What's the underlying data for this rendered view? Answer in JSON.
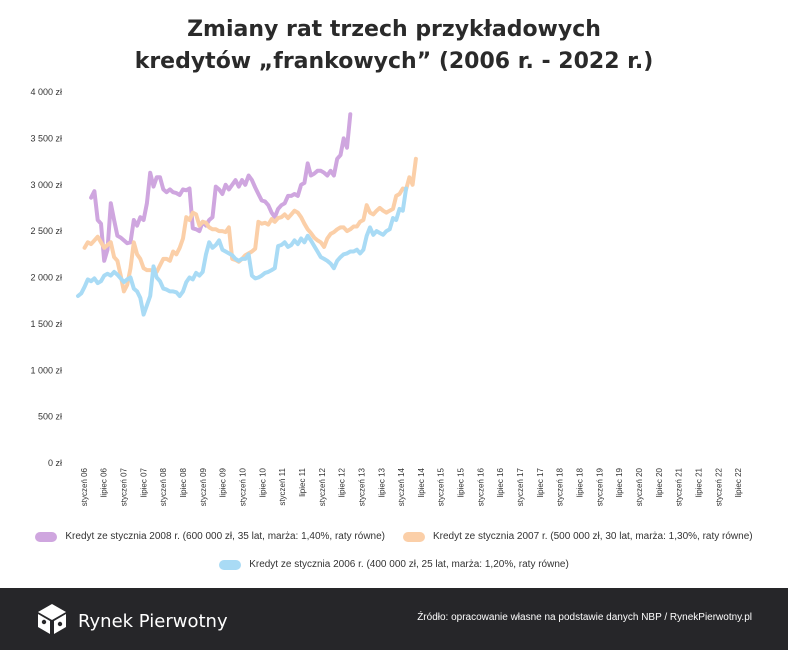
{
  "title_line1": "Zmiany rat trzech przykładowych",
  "title_line2": "kredytów „frankowych” (2006 r. - 2022 r.)",
  "legend": [
    {
      "label": "Kredyt ze stycznia 2008 r. (600 000 zł, 35 lat, marża: 1,40%, raty równe)",
      "color": "#cfa6df"
    },
    {
      "label": "Kredyt ze stycznia 2007 r. (500 000 zł, 30 lat, marża: 1,30%, raty równe)",
      "color": "#fbcfa8"
    },
    {
      "label": "Kredyt ze stycznia 2006 r. (400 000 zł, 25 lat, marża: 1,20%, raty równe)",
      "color": "#a9dbf5"
    }
  ],
  "footer": {
    "brand": "Rynek Pierwotny",
    "source": "Źródło: opracowanie własne na podstawie danych NBP / RynekPierwotny.pl"
  },
  "chart_data": {
    "type": "line",
    "ylim": [
      0,
      4000
    ],
    "y_ticks": [
      0,
      500,
      1000,
      1500,
      2000,
      2500,
      3000,
      3500,
      4000
    ],
    "y_tick_labels": [
      "0 zł",
      "500 zł",
      "1 000 zł",
      "1 500 zł",
      "2 000 zł",
      "2 500 zł",
      "3 000 zł",
      "3 500 zł",
      "4 000 zł"
    ],
    "x_tick_labels": [
      "styczeń 06",
      "lipiec 06",
      "styczeń 07",
      "lipiec 07",
      "styczeń 08",
      "lipiec 08",
      "styczeń 09",
      "lipiec 09",
      "styczeń 10",
      "lipiec 10",
      "styczeń 11",
      "lipiec 11",
      "styczeń 12",
      "lipiec 12",
      "styczeń 13",
      "lipiec 13",
      "styczeń 14",
      "lipiec 14",
      "styczeń 15",
      "lipiec 15",
      "styczeń 16",
      "lipiec 16",
      "styczeń 17",
      "lipiec 17",
      "styczeń 18",
      "lipiec 18",
      "styczeń 19",
      "lipiec 19",
      "styczeń 20",
      "lipiec 20",
      "styczeń 21",
      "lipiec 21",
      "styczeń 22",
      "lipiec 22"
    ],
    "series": [
      {
        "name": "Kredyt ze stycznia 2008 r. (600 000 zł, 35 lat, marża: 1,40%, raty równe)",
        "color": "#cfa6df",
        "start_index": 4,
        "values": [
          2860,
          2930,
          2620,
          2580,
          2180,
          2300,
          2800,
          2620,
          2450,
          2430,
          2400,
          2370,
          2380,
          2620,
          2560,
          2650,
          2620,
          2800,
          3130,
          2980,
          3080,
          3080,
          2950,
          2920,
          2950,
          2920,
          2910,
          2890,
          2950,
          2940,
          2960,
          2530,
          2520,
          2500,
          2600,
          2560,
          2620,
          2650,
          2980,
          2950,
          2900,
          3000,
          2950,
          3000,
          3050,
          2980,
          3050,
          3000,
          3100,
          3050,
          2970,
          2900,
          2830,
          2820,
          2780,
          2700,
          2650,
          2740,
          2780,
          2800,
          2880,
          2880,
          2900,
          2880,
          3000,
          3020,
          3230,
          3100,
          3120,
          3150,
          3150,
          3130,
          3100,
          3150,
          3100,
          3280,
          3320,
          3500,
          3400,
          3760
        ]
      },
      {
        "name": "Kredyt ze stycznia 2007 r. (500 000 zł, 30 lat, marża: 1,30%, raty równe)",
        "color": "#fbcfa8",
        "start_index": 2,
        "values": [
          2320,
          2380,
          2360,
          2400,
          2440,
          2380,
          2320,
          2350,
          2380,
          2220,
          2180,
          2020,
          1850,
          1920,
          2100,
          2380,
          2250,
          2200,
          2100,
          2080,
          2080,
          2070,
          2060,
          2130,
          2200,
          2200,
          2180,
          2280,
          2250,
          2320,
          2420,
          2650,
          2620,
          2700,
          2680,
          2560,
          2600,
          2590,
          2540,
          2520,
          2520,
          2500,
          2500,
          2490,
          2540,
          2200,
          2190,
          2170,
          2200,
          2240,
          2260,
          2280,
          2310,
          2600,
          2580,
          2590,
          2570,
          2630,
          2600,
          2640,
          2650,
          2680,
          2640,
          2680,
          2720,
          2700,
          2650,
          2580,
          2520,
          2480,
          2430,
          2400,
          2380,
          2330,
          2420,
          2470,
          2490,
          2520,
          2540,
          2540,
          2500,
          2520,
          2550,
          2550,
          2600,
          2620,
          2780,
          2700,
          2680,
          2720,
          2750,
          2720,
          2700,
          2720,
          2740,
          2880,
          2900,
          2960,
          2950,
          3080,
          3000,
          3280
        ]
      },
      {
        "name": "Kredyt ze stycznia 2006 r. (400 000 zł, 25 lat, marża: 1,20%, raty równe)",
        "color": "#a9dbf5",
        "start_index": 0,
        "values": [
          1800,
          1830,
          1900,
          1980,
          1960,
          1990,
          1940,
          1960,
          2020,
          2040,
          2020,
          2060,
          2030,
          1990,
          1950,
          1980,
          2000,
          1880,
          1850,
          1780,
          1600,
          1700,
          1800,
          2120,
          2000,
          1960,
          1880,
          1870,
          1850,
          1850,
          1840,
          1800,
          1850,
          1950,
          2000,
          1980,
          2050,
          2020,
          2060,
          2250,
          2380,
          2320,
          2350,
          2400,
          2300,
          2280,
          2260,
          2240,
          2200,
          2180,
          2200,
          2200,
          2250,
          2020,
          1990,
          2000,
          2020,
          2050,
          2060,
          2080,
          2100,
          2340,
          2350,
          2380,
          2330,
          2350,
          2400,
          2360,
          2420,
          2380,
          2450,
          2400,
          2340,
          2280,
          2220,
          2200,
          2180,
          2150,
          2100,
          2180,
          2220,
          2250,
          2260,
          2280,
          2280,
          2300,
          2260,
          2300,
          2450,
          2540,
          2460,
          2500,
          2480,
          2460,
          2500,
          2520,
          2640,
          2620,
          2740,
          2720,
          2960
        ]
      }
    ]
  }
}
